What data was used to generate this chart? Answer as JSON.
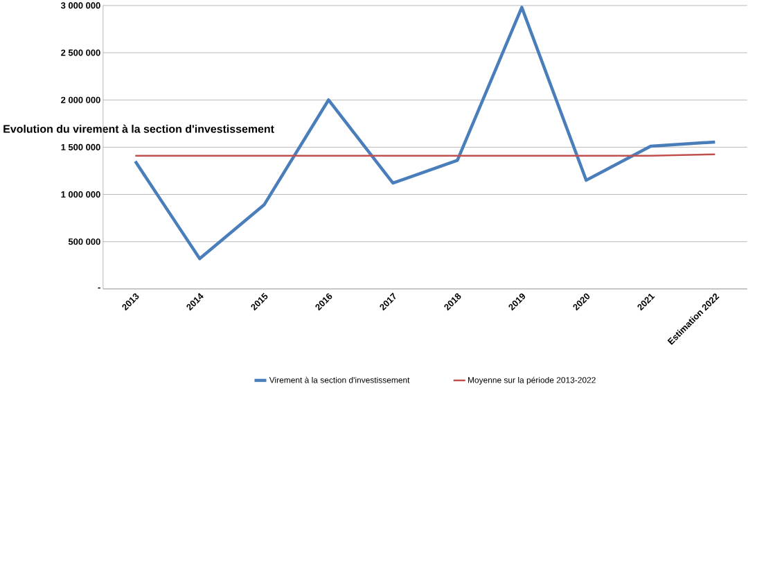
{
  "chart_data": {
    "type": "line",
    "title": "Evolution du virement à la section d'investissement",
    "categories": [
      "2013",
      "2014",
      "2015",
      "2016",
      "2017",
      "2018",
      "2019",
      "2020",
      "2021",
      "Estimation 2022"
    ],
    "series": [
      {
        "name": "Virement à la section d'investissement",
        "color": "#4a7ebb",
        "values": [
          1350000,
          320000,
          890000,
          2000000,
          1120000,
          1360000,
          2980000,
          1150000,
          1510000,
          1555000
        ]
      },
      {
        "name": "Moyenne sur la période 2013-2022",
        "color": "#c0504d",
        "values": [
          1410000,
          1410000,
          1410000,
          1410000,
          1410000,
          1410000,
          1410000,
          1410000,
          1410000,
          1425000
        ]
      }
    ],
    "ylim": [
      0,
      3000000
    ],
    "yticks": [
      {
        "value": 0,
        "label": "-"
      },
      {
        "value": 500000,
        "label": "500 000"
      },
      {
        "value": 1000000,
        "label": "1 000 000"
      },
      {
        "value": 1500000,
        "label": "1 500 000"
      },
      {
        "value": 2000000,
        "label": "2 000 000"
      },
      {
        "value": 2500000,
        "label": "2 500 000"
      },
      {
        "value": 3000000,
        "label": "3 000 000"
      }
    ],
    "grid": "y",
    "legend": "bottom",
    "marker": "none",
    "line_style": "solid"
  }
}
